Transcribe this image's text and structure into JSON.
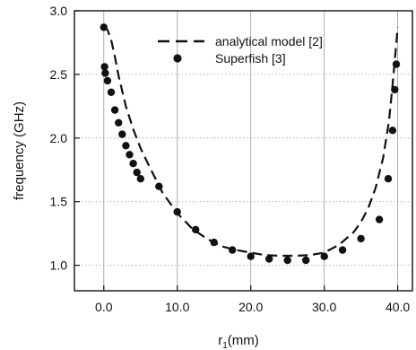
{
  "chart_data": {
    "type": "scatter",
    "xlabel": "r",
    "xlabel_sub": "1",
    "xlabel_unit": "(mm)",
    "ylabel": "frequency (GHz)",
    "xlim": [
      -4,
      42
    ],
    "ylim": [
      0.8,
      3.0
    ],
    "x_ticks": [
      0,
      10,
      20,
      30,
      40
    ],
    "x_tick_labels": [
      "0.0",
      "10.0",
      "20.0",
      "30.0",
      "40.0"
    ],
    "y_ticks": [
      1.0,
      1.5,
      2.0,
      2.5,
      3.0
    ],
    "y_tick_labels": [
      "1.0",
      "1.5",
      "2.0",
      "2.5",
      "3.0"
    ],
    "grid": "vertical and horizontal dotted at major ticks",
    "legend_position": "top-right",
    "series": [
      {
        "name": "analytical model [2]",
        "style": "dashed-line",
        "color": "#111111",
        "x": [
          0,
          0.5,
          1,
          1.5,
          2,
          3,
          4,
          5,
          6,
          8,
          10,
          12,
          14,
          16,
          18,
          20,
          22,
          24,
          26,
          28,
          30,
          32,
          34,
          35,
          36,
          37,
          38,
          38.8,
          39.3,
          39.7,
          40
        ],
        "y": [
          2.87,
          2.85,
          2.77,
          2.64,
          2.49,
          2.25,
          2.07,
          1.92,
          1.8,
          1.57,
          1.41,
          1.29,
          1.21,
          1.15,
          1.12,
          1.1,
          1.08,
          1.075,
          1.075,
          1.08,
          1.1,
          1.16,
          1.26,
          1.34,
          1.45,
          1.61,
          1.84,
          2.13,
          2.42,
          2.68,
          2.87
        ]
      },
      {
        "name": "Superfish [3]",
        "style": "marker-circle",
        "color": "#111111",
        "x": [
          0,
          0.1,
          0.2,
          0.5,
          1.0,
          1.5,
          2.0,
          2.5,
          3.0,
          3.5,
          4.0,
          4.5,
          5.0,
          7.5,
          10.0,
          12.5,
          15.0,
          17.5,
          20.0,
          22.5,
          25.0,
          27.5,
          30.0,
          32.5,
          35.0,
          37.5,
          38.7,
          39.3,
          39.6,
          39.8
        ],
        "y": [
          2.87,
          2.56,
          2.51,
          2.45,
          2.36,
          2.22,
          2.12,
          2.03,
          1.94,
          1.87,
          1.8,
          1.73,
          1.68,
          1.62,
          1.42,
          1.28,
          1.18,
          1.12,
          1.07,
          1.05,
          1.04,
          1.04,
          1.07,
          1.12,
          1.21,
          1.36,
          1.68,
          2.06,
          2.38,
          2.58
        ]
      }
    ]
  }
}
